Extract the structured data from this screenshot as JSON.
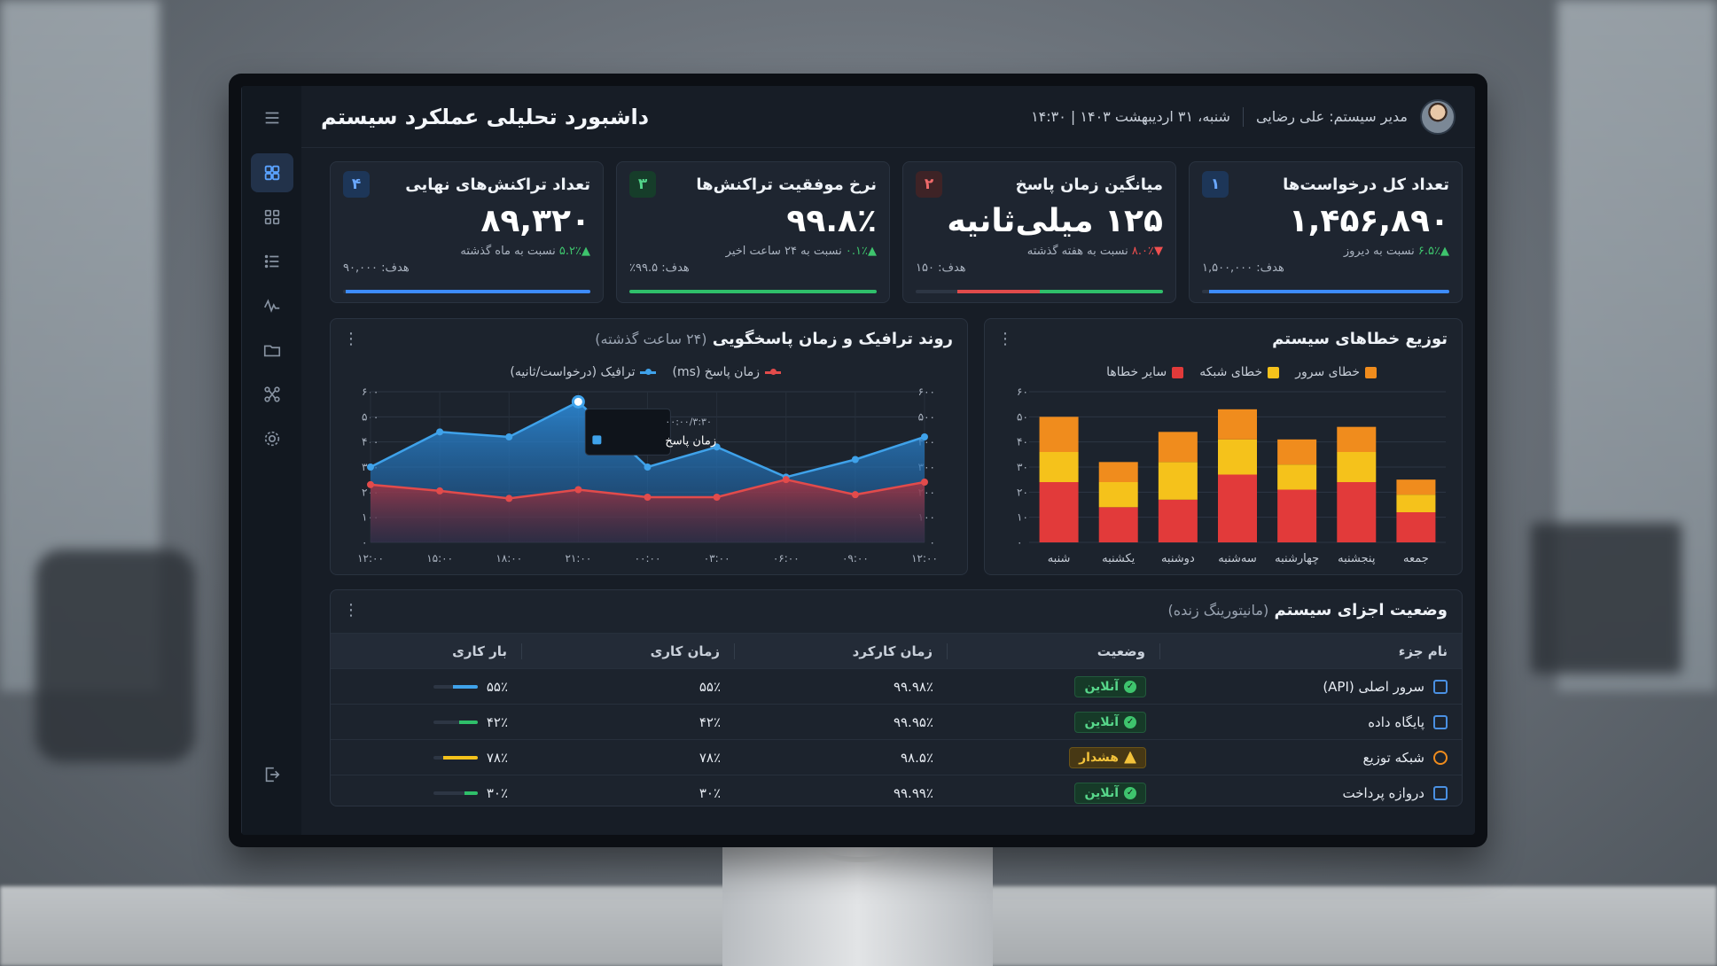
{
  "header": {
    "title": "داشبورد تحلیلی عملکرد سیستم",
    "user": "مدیر سیستم: علی رضایی",
    "datetime": "شنبه، ۳۱ اردیبهشت ۱۴۰۳ | ۱۴:۳۰"
  },
  "sidebar": {
    "items": [
      {
        "icon": "dashboard-icon",
        "active": true
      },
      {
        "icon": "grid-icon"
      },
      {
        "icon": "list-icon"
      },
      {
        "icon": "activity-icon"
      },
      {
        "icon": "folder-icon"
      },
      {
        "icon": "network-icon"
      },
      {
        "icon": "settings-icon"
      }
    ],
    "logout_icon": "logout-icon",
    "menu_icon": "hamburger-menu-icon"
  },
  "kpis": [
    {
      "badge": "۴",
      "label": "تعداد تراکنش‌های نهایی",
      "value": "۸۹,۳۲۰",
      "arrow": "▲",
      "delta": "۵.۲٪",
      "delta_text": "نسبت به ماه گذشته",
      "trend": "up",
      "target": "هدف: ۹۰,۰۰۰",
      "progress": 0.99,
      "color": "#3d8bfd",
      "badge_bg": "#1d3658",
      "badge_fg": "#6aa8ff"
    },
    {
      "badge": "۳",
      "label": "نرخ موفقیت تراکنش‌ها",
      "value": "۹۹.۸٪",
      "arrow": "▲",
      "delta": "۰.۱٪",
      "delta_text": "نسبت به ۲۴ ساعت اخیر",
      "trend": "up",
      "target": "هدف: ۹۹.۵٪",
      "progress": 1.0,
      "color": "#2fbf6a",
      "badge_bg": "#163d2a",
      "badge_fg": "#52d389"
    },
    {
      "badge": "۲",
      "label": "میانگین زمان پاسخ",
      "value": "۱۲۵ میلی‌ثانیه",
      "arrow": "▼",
      "delta": "۸.۰٪",
      "delta_text": "نسبت به هفته گذشته",
      "trend": "down",
      "target": "هدف: ۱۵۰",
      "progress": 0.83,
      "color": "#2fbf6a",
      "badge_bg": "#3e2326",
      "badge_fg": "#ef6a6a",
      "secondary_color": "#e04b4b"
    },
    {
      "badge": "۱",
      "label": "تعداد کل درخواست‌ها",
      "value": "۱,۴۵۶,۸۹۰",
      "arrow": "▲",
      "delta": "۶.۵٪",
      "delta_text": "نسبت به دیروز",
      "trend": "up",
      "target": "هدف: ۱,۵۰۰,۰۰۰",
      "progress": 0.97,
      "color": "#3d8bfd",
      "badge_bg": "#1d3658",
      "badge_fg": "#6aa8ff"
    }
  ],
  "errors_panel": {
    "title": "توزیع خطاهای سیستم",
    "legend": [
      {
        "label": "خطای سرور",
        "color": "#f08c1d"
      },
      {
        "label": "خطای شبکه",
        "color": "#f5c21b"
      },
      {
        "label": "سایر خطاها",
        "color": "#e23a3a"
      }
    ]
  },
  "traffic_panel": {
    "title": "روند ترافیک و زمان پاسخگویی",
    "subtitle": "(۲۴ ساعت گذشته)",
    "legend": [
      {
        "label": "زمان پاسخ (ms)",
        "color": "#e24b4b"
      },
      {
        "label": "ترافیک (درخواست/ثانیه)",
        "color": "#3fa2ea"
      }
    ],
    "tooltip_time": "۰۰:۰۰/۳:۳۰",
    "tooltip_label": "زمان پاسخ"
  },
  "chart_data": [
    {
      "type": "line",
      "x": [
        "۱۲:۰۰",
        "۱۵:۰۰",
        "۱۸:۰۰",
        "۲۱:۰۰",
        "۰۰:۰۰",
        "۰۳:۰۰",
        "۰۶:۰۰",
        "۰۹:۰۰",
        "۱۲:۰۰"
      ],
      "series": [
        {
          "name": "ترافیک (درخواست/ثانیه)",
          "values": [
            300,
            440,
            420,
            560,
            300,
            380,
            260,
            330,
            420
          ],
          "color": "#3fa2ea"
        },
        {
          "name": "زمان پاسخ (ms)",
          "values": [
            230,
            205,
            175,
            210,
            180,
            180,
            250,
            190,
            240
          ],
          "color": "#e24b4b"
        }
      ],
      "y_ticks": [
        "۰",
        "۱۰۰",
        "۲۰۰",
        "۳۰۰",
        "۴۰۰",
        "۵۰۰",
        "۶۰۰"
      ],
      "ylim": [
        0,
        600
      ],
      "grid": true
    },
    {
      "type": "bar",
      "stacked": true,
      "categories": [
        "شنبه",
        "یکشنبه",
        "دوشنبه",
        "سه‌شنبه",
        "چهارشنبه",
        "پنجشنبه",
        "جمعه"
      ],
      "series": [
        {
          "name": "سایر خطاها",
          "values": [
            24,
            14,
            17,
            27,
            21,
            24,
            12
          ],
          "color": "#e23a3a"
        },
        {
          "name": "خطای شبکه",
          "values": [
            12,
            10,
            15,
            14,
            10,
            12,
            7
          ],
          "color": "#f5c21b"
        },
        {
          "name": "خطای سرور",
          "values": [
            14,
            8,
            12,
            12,
            10,
            10,
            6
          ],
          "color": "#f08c1d"
        }
      ],
      "y_ticks": [
        "۰",
        "۱۰",
        "۲۰",
        "۳۰",
        "۴۰",
        "۵۰",
        "۶۰"
      ],
      "ylim": [
        0,
        60
      ],
      "grid": true
    }
  ],
  "components_panel": {
    "title": "وضعیت اجزای سیستم",
    "subtitle": "(مانیتورینگ زنده)",
    "columns": [
      "نام جزء",
      "وضعیت",
      "زمان کارکرد",
      "زمان کاری",
      "بار کاری"
    ],
    "rows": [
      {
        "name": "سرور اصلی (API)",
        "icon": "server-icon",
        "status": "آنلاین",
        "state": "ok",
        "uptime": "۹۹.۹۸٪",
        "work_time": "۵۵٪",
        "load": "۵۵٪",
        "load_value": 0.55,
        "load_color": "#3fa2ea"
      },
      {
        "name": "پایگاه داده",
        "icon": "database-icon",
        "status": "آنلاین",
        "state": "ok",
        "uptime": "۹۹.۹۵٪",
        "work_time": "۴۲٪",
        "load": "۴۲٪",
        "load_value": 0.42,
        "load_color": "#2fbf6a"
      },
      {
        "name": "شبکه توزیع",
        "icon": "network-icon",
        "status": "هشدار",
        "state": "warn",
        "uptime": "۹۸.۵٪",
        "work_time": "۷۸٪",
        "load": "۷۸٪",
        "load_value": 0.78,
        "load_color": "#f5c21b"
      },
      {
        "name": "دروازه پرداخت",
        "icon": "payment-gateway-icon",
        "status": "آنلاین",
        "state": "ok",
        "uptime": "۹۹.۹۹٪",
        "work_time": "۳۰٪",
        "load": "۳۰٪",
        "load_value": 0.3,
        "load_color": "#2fbf6a"
      }
    ]
  }
}
